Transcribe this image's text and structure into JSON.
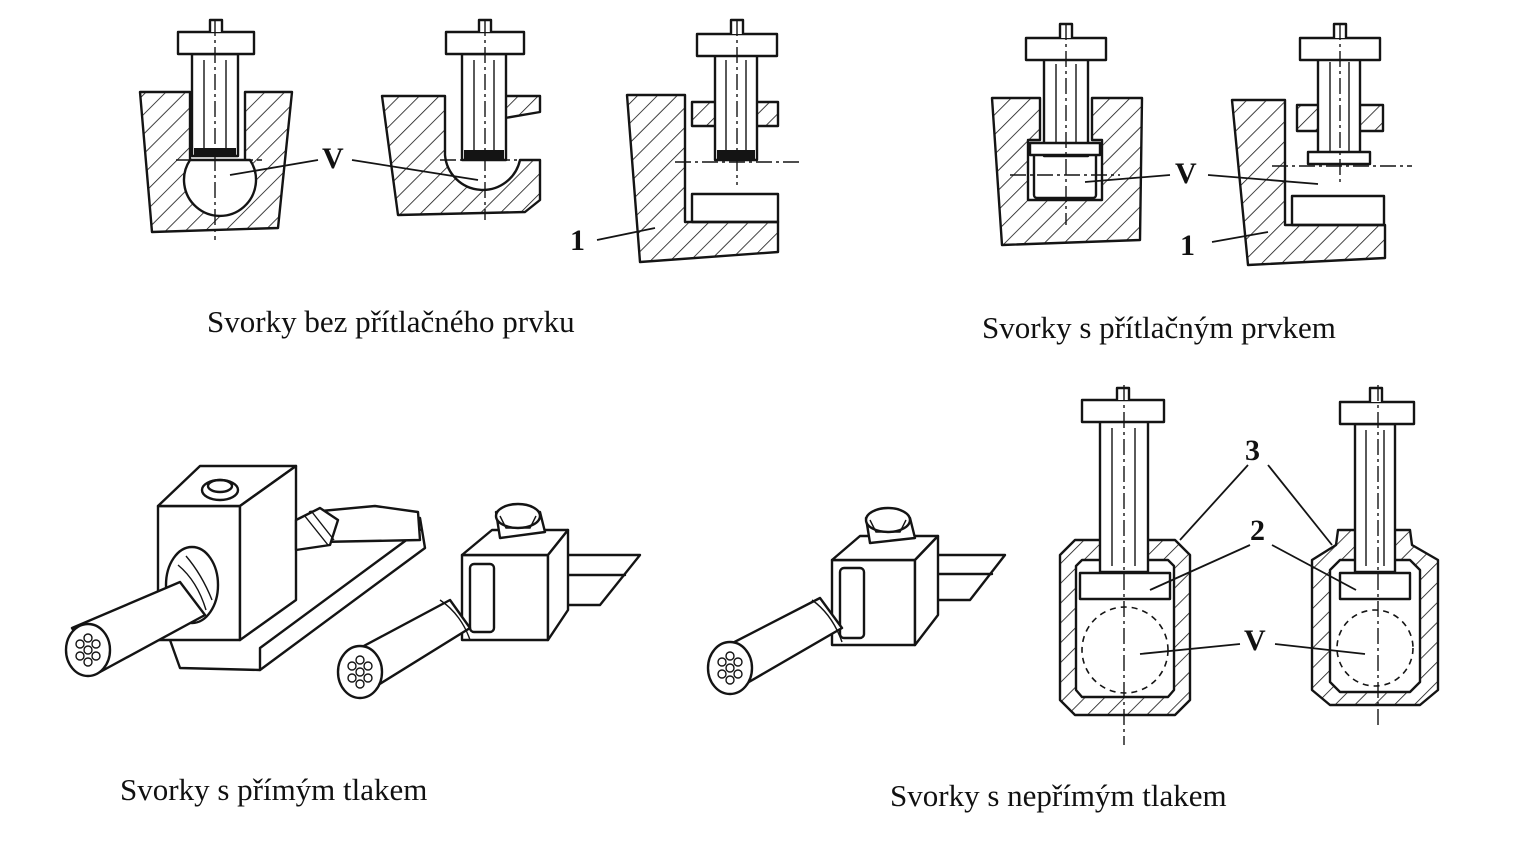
{
  "captions": {
    "top_left": "Svorky bez přítlačného prvku",
    "top_right": "Svorky s přítlačným prvkem",
    "bottom_left": "Svorky s přímým tlakem",
    "bottom_right": "Svorky s nepřímým tlakem"
  },
  "labels": {
    "v": "V",
    "one": "1",
    "two": "2",
    "three": "3"
  },
  "colors": {
    "ink": "#141414",
    "paper": "#ffffff"
  }
}
